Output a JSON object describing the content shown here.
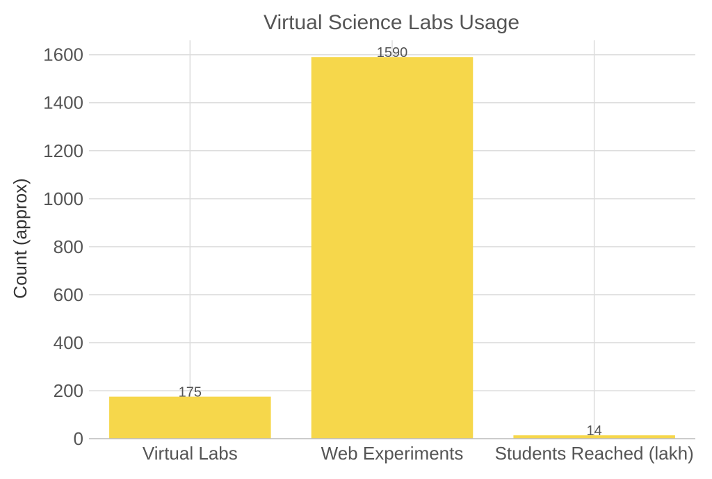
{
  "chart_data": {
    "type": "bar",
    "title": "Virtual Science Labs Usage",
    "xlabel": "",
    "ylabel": "Count (approx)",
    "categories": [
      "Virtual Labs",
      "Web Experiments",
      "Students Reached (lakh)"
    ],
    "values": [
      175,
      1590,
      14
    ],
    "data_labels": [
      "175",
      "1590",
      "14"
    ],
    "ylim": [
      0,
      1660
    ],
    "yticks": [
      0,
      200,
      400,
      600,
      800,
      1000,
      1200,
      1400,
      1600
    ],
    "grid": true,
    "bar_color": "#F6D74B",
    "grid_color": "#DDDDDD",
    "text_color": "#555555"
  }
}
